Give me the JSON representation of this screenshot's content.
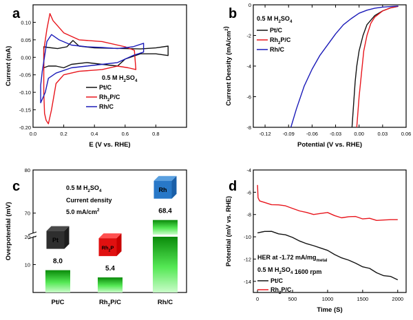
{
  "colors": {
    "black": "#111111",
    "red": "#e8141b",
    "blue": "#1a1ab8"
  },
  "chart_data": [
    {
      "panel": "a",
      "type": "line",
      "xlabel": "E (V vs. RHE)",
      "ylabel": "Current (mA)",
      "xlim": [
        0.0,
        1.0
      ],
      "ylim": [
        -0.2,
        0.15
      ],
      "x_ticks": [
        "0.0",
        "0.2",
        "0.4",
        "0.6",
        "0.8"
      ],
      "x_tick_values": [
        0.0,
        0.2,
        0.4,
        0.6,
        0.8
      ],
      "y_ticks": [
        "-0.20",
        "-0.15",
        "-0.10",
        "-0.05",
        "0.00",
        "0.05",
        "0.10"
      ],
      "y_tick_values": [
        -0.2,
        -0.15,
        -0.1,
        -0.05,
        0.0,
        0.05,
        0.1
      ],
      "legend_title": "0.5 M H2SO4",
      "legend_position": "lower-right",
      "series": [
        {
          "name": "Pt/C",
          "color": "black",
          "points": [
            [
              0.07,
              -0.01
            ],
            [
              0.07,
              0.03
            ],
            [
              0.1,
              0.028
            ],
            [
              0.16,
              0.025
            ],
            [
              0.22,
              0.03
            ],
            [
              0.26,
              0.048
            ],
            [
              0.3,
              0.032
            ],
            [
              0.4,
              0.027
            ],
            [
              0.5,
              0.026
            ],
            [
              0.6,
              0.025
            ],
            [
              0.7,
              0.024
            ],
            [
              0.8,
              0.027
            ],
            [
              0.88,
              0.032
            ],
            [
              0.88,
              0.005
            ],
            [
              0.8,
              0.01
            ],
            [
              0.7,
              0.01
            ],
            [
              0.6,
              -0.005
            ],
            [
              0.55,
              -0.025
            ],
            [
              0.45,
              -0.02
            ],
            [
              0.35,
              -0.015
            ],
            [
              0.25,
              -0.02
            ],
            [
              0.2,
              -0.03
            ],
            [
              0.15,
              -0.025
            ],
            [
              0.1,
              -0.025
            ],
            [
              0.07,
              -0.03
            ],
            [
              0.07,
              -0.01
            ]
          ]
        },
        {
          "name": "Rh2P/C",
          "color": "red",
          "points": [
            [
              0.07,
              -0.1
            ],
            [
              0.07,
              0.02
            ],
            [
              0.09,
              0.08
            ],
            [
              0.11,
              0.125
            ],
            [
              0.13,
              0.105
            ],
            [
              0.2,
              0.07
            ],
            [
              0.3,
              0.05
            ],
            [
              0.45,
              0.045
            ],
            [
              0.6,
              0.03
            ],
            [
              0.66,
              0.02
            ],
            [
              0.67,
              -0.035
            ],
            [
              0.62,
              -0.03
            ],
            [
              0.55,
              -0.025
            ],
            [
              0.45,
              -0.035
            ],
            [
              0.3,
              -0.04
            ],
            [
              0.2,
              -0.05
            ],
            [
              0.15,
              -0.075
            ],
            [
              0.12,
              -0.15
            ],
            [
              0.1,
              -0.19
            ],
            [
              0.085,
              -0.18
            ],
            [
              0.075,
              -0.16
            ],
            [
              0.07,
              -0.1
            ]
          ]
        },
        {
          "name": "Rh/C",
          "color": "blue",
          "points": [
            [
              0.05,
              -0.08
            ],
            [
              0.06,
              -0.04
            ],
            [
              0.09,
              0.045
            ],
            [
              0.12,
              0.065
            ],
            [
              0.17,
              0.05
            ],
            [
              0.25,
              0.035
            ],
            [
              0.35,
              0.03
            ],
            [
              0.45,
              0.028
            ],
            [
              0.55,
              0.025
            ],
            [
              0.65,
              0.03
            ],
            [
              0.72,
              0.04
            ],
            [
              0.72,
              0.015
            ],
            [
              0.65,
              0.005
            ],
            [
              0.55,
              -0.015
            ],
            [
              0.45,
              -0.02
            ],
            [
              0.35,
              -0.025
            ],
            [
              0.25,
              -0.03
            ],
            [
              0.15,
              -0.045
            ],
            [
              0.1,
              -0.06
            ],
            [
              0.08,
              -0.1
            ],
            [
              0.05,
              -0.13
            ],
            [
              0.05,
              -0.08
            ]
          ]
        }
      ]
    },
    {
      "panel": "b",
      "type": "line",
      "xlabel": "Potential (V vs. RHE)",
      "ylabel": "Current Density (mA/cm2)",
      "xlim": [
        -0.135,
        0.06
      ],
      "ylim": [
        -8,
        0
      ],
      "x_ticks": [
        "-0.12",
        "-0.09",
        "-0.06",
        "-0.03",
        "0.00",
        "0.03",
        "0.06"
      ],
      "x_tick_values": [
        -0.12,
        -0.09,
        -0.06,
        -0.03,
        0.0,
        0.03,
        0.06
      ],
      "y_ticks": [
        "-8",
        "-6",
        "-4",
        "-2",
        "0"
      ],
      "y_tick_values": [
        -8,
        -6,
        -4,
        -2,
        0
      ],
      "legend_title": "0.5 M H2SO4",
      "legend_position": "top-left",
      "series": [
        {
          "name": "Pt/C",
          "color": "black",
          "points": [
            [
              -0.009,
              -8.0
            ],
            [
              -0.007,
              -6.5
            ],
            [
              -0.005,
              -5.0
            ],
            [
              -0.003,
              -4.0
            ],
            [
              0.0,
              -3.0
            ],
            [
              0.005,
              -2.0
            ],
            [
              0.01,
              -1.3
            ],
            [
              0.02,
              -0.7
            ],
            [
              0.03,
              -0.4
            ],
            [
              0.04,
              -0.2
            ],
            [
              0.05,
              -0.1
            ]
          ]
        },
        {
          "name": "Rh2P/C",
          "color": "red",
          "points": [
            [
              -0.003,
              -8.0
            ],
            [
              0.0,
              -6.0
            ],
            [
              0.003,
              -4.5
            ],
            [
              0.006,
              -3.0
            ],
            [
              0.01,
              -2.0
            ],
            [
              0.015,
              -1.2
            ],
            [
              0.02,
              -0.8
            ],
            [
              0.03,
              -0.4
            ],
            [
              0.04,
              -0.2
            ],
            [
              0.05,
              -0.1
            ]
          ]
        },
        {
          "name": "Rh/C",
          "color": "blue",
          "points": [
            [
              -0.087,
              -8.0
            ],
            [
              -0.08,
              -6.8
            ],
            [
              -0.07,
              -5.3
            ],
            [
              -0.06,
              -4.2
            ],
            [
              -0.05,
              -3.3
            ],
            [
              -0.04,
              -2.6
            ],
            [
              -0.03,
              -1.9
            ],
            [
              -0.02,
              -1.3
            ],
            [
              -0.01,
              -0.9
            ],
            [
              0.0,
              -0.55
            ],
            [
              0.01,
              -0.35
            ],
            [
              0.02,
              -0.22
            ],
            [
              0.03,
              -0.15
            ],
            [
              0.05,
              -0.08
            ]
          ]
        }
      ]
    },
    {
      "panel": "c",
      "type": "bar",
      "ylabel": "Overpotential (mV)",
      "categories": [
        "Pt/C",
        "Rh2P/C",
        "Rh/C"
      ],
      "values": [
        8.0,
        5.4,
        68.4
      ],
      "value_labels": [
        "8.0",
        "5.4",
        "68.4"
      ],
      "axis_break": [
        20,
        65
      ],
      "y_ticks": [
        "10",
        "20",
        "70",
        "80"
      ],
      "y_tick_values": [
        10,
        20,
        70,
        80
      ],
      "ylim": [
        0,
        80
      ],
      "annotation": {
        "line1": "0.5 M H2SO4",
        "line2": "Current density",
        "line3": "5.0 mA/cm2"
      },
      "cube_labels": [
        "Pt",
        "Rh2P",
        "Rh"
      ]
    },
    {
      "panel": "d",
      "type": "line",
      "xlabel": "Time (S)",
      "ylabel": "Potential (mV vs. RHE)",
      "xlim": [
        -60,
        2120
      ],
      "ylim": [
        -15,
        -4
      ],
      "x_ticks": [
        "0",
        "500",
        "1000",
        "1500",
        "2000"
      ],
      "x_tick_values": [
        0,
        500,
        1000,
        1500,
        2000
      ],
      "y_ticks": [
        "-14",
        "-12",
        "-10",
        "-8",
        "-6",
        "-4"
      ],
      "y_tick_values": [
        -14,
        -12,
        -10,
        -8,
        -6,
        -4
      ],
      "annotation": "HER at -1.72 mA/mgmetal",
      "legend_title": "0.5 M H2SO4  1600 rpm",
      "legend_position": "lower-left",
      "series": [
        {
          "name": "Pt/C",
          "color": "black",
          "points": [
            [
              0,
              -9.6
            ],
            [
              100,
              -9.5
            ],
            [
              200,
              -9.5
            ],
            [
              300,
              -9.7
            ],
            [
              400,
              -9.9
            ],
            [
              500,
              -10.1
            ],
            [
              600,
              -10.3
            ],
            [
              700,
              -10.6
            ],
            [
              800,
              -10.8
            ],
            [
              900,
              -11.0
            ],
            [
              1000,
              -11.3
            ],
            [
              1100,
              -11.6
            ],
            [
              1200,
              -11.8
            ],
            [
              1300,
              -12.1
            ],
            [
              1400,
              -12.4
            ],
            [
              1500,
              -12.7
            ],
            [
              1600,
              -12.9
            ],
            [
              1700,
              -13.2
            ],
            [
              1800,
              -13.4
            ],
            [
              1900,
              -13.6
            ],
            [
              2000,
              -13.9
            ]
          ]
        },
        {
          "name": "Rh2P/C",
          "color": "red",
          "points": [
            [
              0,
              -5.3
            ],
            [
              8,
              -6.4
            ],
            [
              30,
              -6.8
            ],
            [
              100,
              -6.9
            ],
            [
              200,
              -7.1
            ],
            [
              300,
              -7.1
            ],
            [
              400,
              -7.3
            ],
            [
              500,
              -7.5
            ],
            [
              600,
              -7.6
            ],
            [
              700,
              -7.8
            ],
            [
              800,
              -8.0
            ],
            [
              900,
              -7.9
            ],
            [
              1000,
              -7.9
            ],
            [
              1100,
              -8.1
            ],
            [
              1200,
              -8.2
            ],
            [
              1300,
              -8.2
            ],
            [
              1400,
              -8.2
            ],
            [
              1500,
              -8.4
            ],
            [
              1600,
              -8.4
            ],
            [
              1700,
              -8.5
            ],
            [
              1800,
              -8.4
            ],
            [
              1900,
              -8.5
            ],
            [
              2000,
              -8.5
            ]
          ]
        }
      ]
    }
  ]
}
